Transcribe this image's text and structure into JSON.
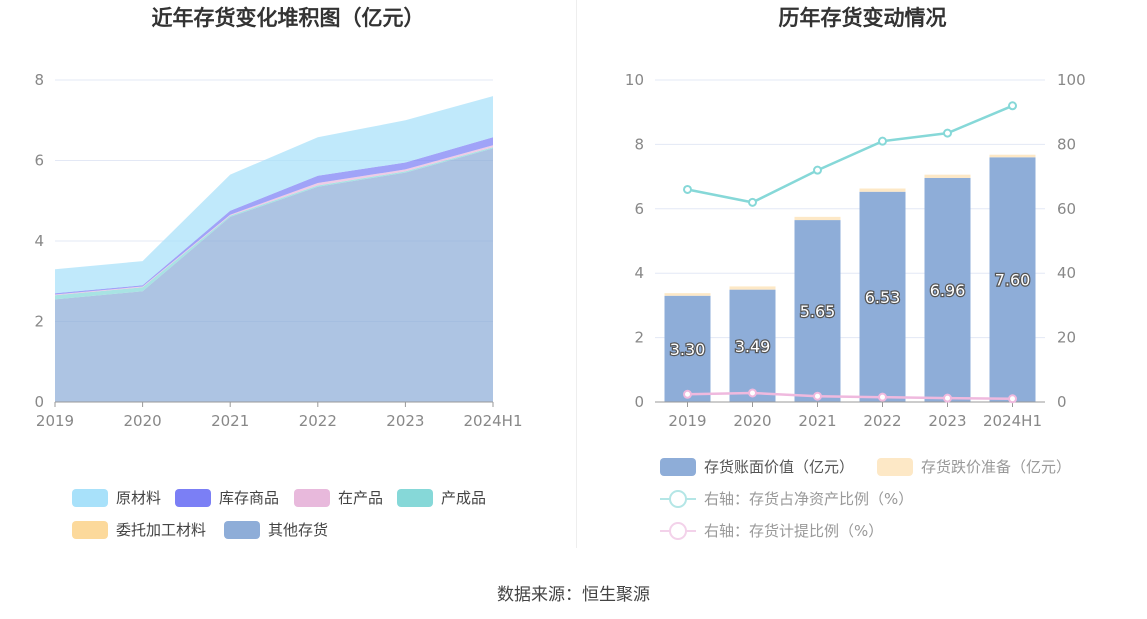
{
  "left_panel": {
    "title": "近年存货变化堆积图（亿元）",
    "legend": [
      {
        "label": "原材料",
        "color": "#a8e1fa"
      },
      {
        "label": "库存商品",
        "color": "#7b7ff5"
      },
      {
        "label": "在产品",
        "color": "#e8b9dc"
      },
      {
        "label": "产成品",
        "color": "#86d8d8"
      },
      {
        "label": "委托加工材料",
        "color": "#fcd99b"
      },
      {
        "label": "其他存货",
        "color": "#8eadd8"
      }
    ]
  },
  "right_panel": {
    "title": "历年存货变动情况",
    "legend": [
      {
        "label": "存货账面价值（亿元）",
        "color": "#8eadd8",
        "kind": "bar"
      },
      {
        "label": "存货跌价准备（亿元）",
        "color": "#fde8c6",
        "kind": "bar"
      },
      {
        "label": "右轴：存货占净资产比例（%）",
        "color": "#86d8d8",
        "kind": "line"
      },
      {
        "label": "右轴：存货计提比例（%）",
        "color": "#efb9de",
        "kind": "line"
      }
    ]
  },
  "source": "数据来源：恒生聚源",
  "chart_data": [
    {
      "type": "area",
      "stacked": true,
      "title": "近年存货变化堆积图（亿元）",
      "categories": [
        "2019",
        "2020",
        "2021",
        "2022",
        "2023",
        "2024H1"
      ],
      "ylim": [
        0,
        8
      ],
      "yticks": [
        0,
        2,
        4,
        6,
        8
      ],
      "series": [
        {
          "name": "其他存货",
          "values": [
            2.55,
            2.75,
            4.6,
            5.35,
            5.7,
            6.3
          ],
          "color": "#8eadd8"
        },
        {
          "name": "委托加工材料",
          "values": [
            0.0,
            0.0,
            0.0,
            0.0,
            0.0,
            0.0
          ],
          "color": "#fcd99b"
        },
        {
          "name": "产成品",
          "values": [
            0.1,
            0.1,
            0.03,
            0.03,
            0.03,
            0.03
          ],
          "color": "#86d8d8"
        },
        {
          "name": "在产品",
          "values": [
            0.02,
            0.02,
            0.02,
            0.06,
            0.05,
            0.05
          ],
          "color": "#e8b9dc"
        },
        {
          "name": "库存商品",
          "values": [
            0.03,
            0.03,
            0.1,
            0.18,
            0.17,
            0.2
          ],
          "color": "#7b7ff5"
        },
        {
          "name": "原材料",
          "values": [
            0.6,
            0.6,
            0.9,
            0.96,
            1.05,
            1.02
          ],
          "color": "#a8e1fa"
        }
      ],
      "grid": true,
      "legend": "bottom"
    },
    {
      "type": "bar",
      "stacked": true,
      "title": "历年存货变动情况",
      "categories": [
        "2019",
        "2020",
        "2021",
        "2022",
        "2023",
        "2024H1"
      ],
      "ylim": [
        0,
        10
      ],
      "yticks": [
        0,
        2,
        4,
        6,
        8,
        10
      ],
      "y2lim": [
        0,
        100
      ],
      "y2ticks": [
        0,
        20,
        40,
        60,
        80,
        100
      ],
      "series": [
        {
          "name": "存货账面价值（亿元）",
          "type": "bar",
          "axis": "left",
          "values": [
            3.3,
            3.49,
            5.65,
            6.53,
            6.96,
            7.6
          ],
          "labels": [
            "3.30",
            "3.49",
            "5.65",
            "6.53",
            "6.96",
            "7.60"
          ],
          "color": "#8eadd8"
        },
        {
          "name": "存货跌价准备（亿元）",
          "type": "bar",
          "axis": "left",
          "values": [
            0.08,
            0.1,
            0.1,
            0.1,
            0.1,
            0.08
          ],
          "color": "#fde8c6"
        },
        {
          "name": "右轴：存货占净资产比例（%）",
          "type": "line",
          "axis": "right",
          "values": [
            66,
            62,
            72,
            81,
            83.5,
            92
          ],
          "color": "#86d8d8"
        },
        {
          "name": "右轴：存货计提比例（%）",
          "type": "line",
          "axis": "right",
          "values": [
            2.4,
            2.8,
            1.8,
            1.5,
            1.2,
            1.0
          ],
          "color": "#efb9de"
        }
      ],
      "grid": true,
      "legend": "bottom"
    }
  ]
}
